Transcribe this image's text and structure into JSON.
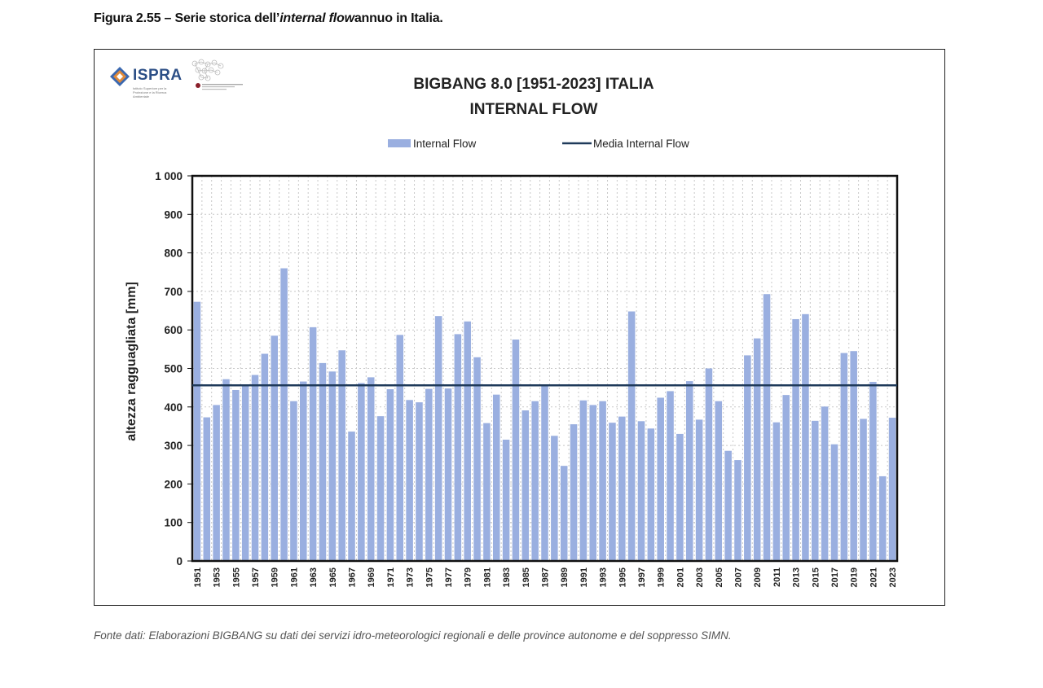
{
  "caption": {
    "prefix": "Figura 2.55 – Serie storica dell’",
    "italic": "internal flow",
    "suffix": "annuo in Italia."
  },
  "logos": {
    "ispra": "ISPRA",
    "ispra_sub": "Istituto Superiore per la Protezione e la Ricerca Ambientale"
  },
  "source": "Fonte dati: Elaborazioni BIGBANG su dati dei servizi idro-meteorologici regionali e delle province autonome e del soppresso SIMN.",
  "chart_data": {
    "type": "bar",
    "title_line1": "BIGBANG 8.0 [1951-2023] ITALIA",
    "title_line2": "INTERNAL FLOW",
    "ylabel": "altezza ragguagliata [mm]",
    "xlabel": "",
    "ylim": [
      0,
      1000
    ],
    "yticks": [
      0,
      100,
      200,
      300,
      400,
      500,
      600,
      700,
      800,
      900,
      1000
    ],
    "ytick_labels": [
      "0",
      "100",
      "200",
      "300",
      "400",
      "500",
      "600",
      "700",
      "800",
      "900",
      "1 000"
    ],
    "grid": true,
    "legend_position": "top",
    "bar_color": "#9aafe0",
    "line_color": "#1f3a5a",
    "series": [
      {
        "name": "Internal Flow",
        "type": "bar",
        "categories": [
          1951,
          1952,
          1953,
          1954,
          1955,
          1956,
          1957,
          1958,
          1959,
          1960,
          1961,
          1962,
          1963,
          1964,
          1965,
          1966,
          1967,
          1968,
          1969,
          1970,
          1971,
          1972,
          1973,
          1974,
          1975,
          1976,
          1977,
          1978,
          1979,
          1980,
          1981,
          1982,
          1983,
          1984,
          1985,
          1986,
          1987,
          1988,
          1989,
          1990,
          1991,
          1992,
          1993,
          1994,
          1995,
          1996,
          1997,
          1998,
          1999,
          2000,
          2001,
          2002,
          2003,
          2004,
          2005,
          2006,
          2007,
          2008,
          2009,
          2010,
          2011,
          2012,
          2013,
          2014,
          2015,
          2016,
          2017,
          2018,
          2019,
          2020,
          2021,
          2022,
          2023
        ],
        "values": [
          673,
          373,
          405,
          472,
          444,
          454,
          483,
          538,
          585,
          760,
          415,
          466,
          607,
          514,
          492,
          547,
          336,
          462,
          477,
          376,
          446,
          587,
          418,
          412,
          447,
          636,
          448,
          589,
          622,
          529,
          358,
          432,
          315,
          575,
          391,
          415,
          458,
          325,
          247,
          355,
          417,
          405,
          415,
          359,
          375,
          648,
          363,
          344,
          424,
          441,
          330,
          467,
          367,
          500,
          415,
          286,
          262,
          534,
          578,
          693,
          360,
          431,
          628,
          641,
          364,
          401,
          303,
          540,
          545,
          369,
          465,
          220,
          372
        ]
      },
      {
        "name": "Media Internal Flow",
        "type": "line",
        "value": 456
      }
    ]
  }
}
